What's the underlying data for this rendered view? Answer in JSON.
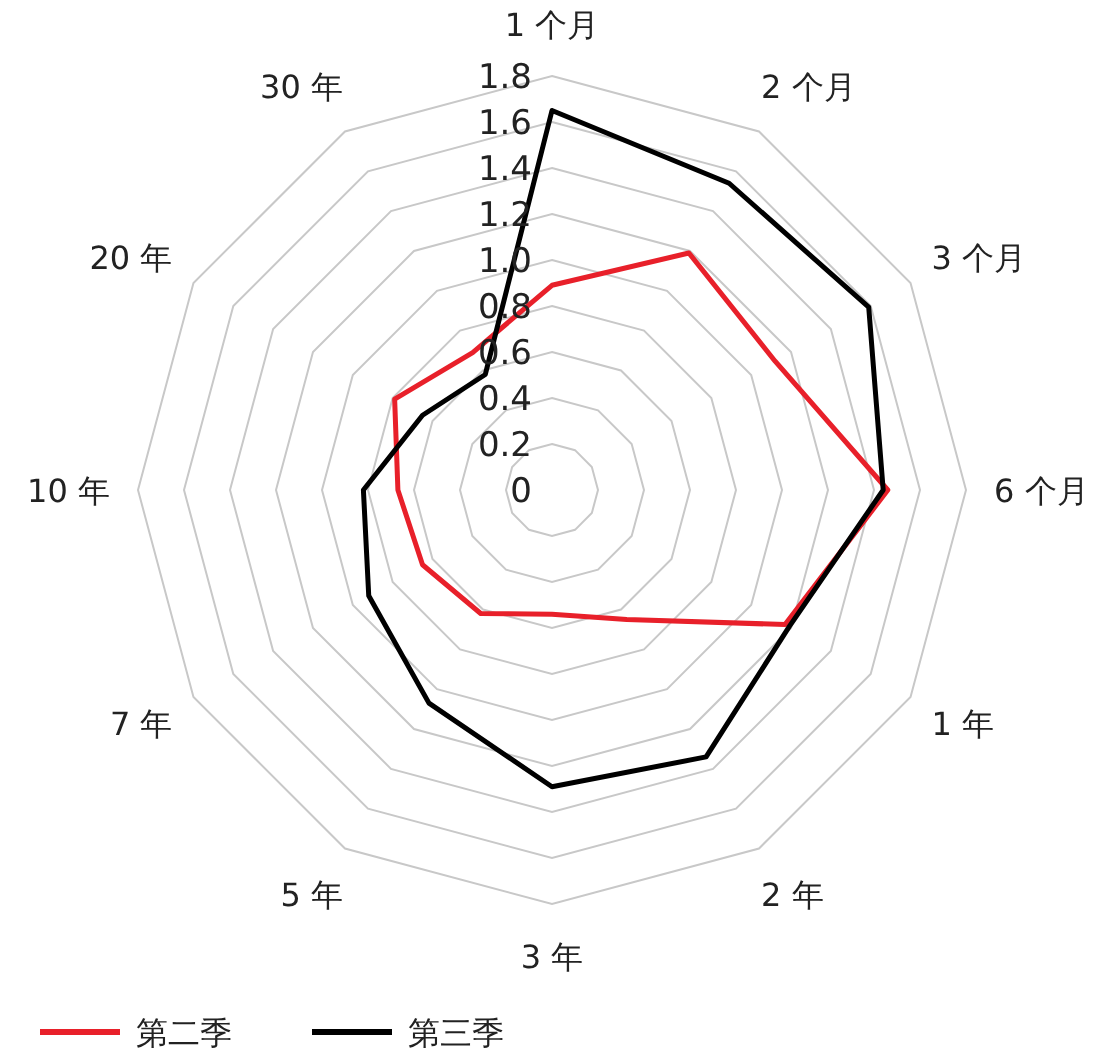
{
  "chart_data": {
    "type": "radar",
    "categories": [
      "1 个月",
      "2 个月",
      "3 个月",
      "6 个月",
      "1 年",
      "2 年",
      "3 年",
      "5 年",
      "7 年",
      "10 年",
      "20 年",
      "30 年"
    ],
    "series": [
      {
        "name": "第二季",
        "color": "#e8202a",
        "values": [
          0.89,
          1.19,
          1.12,
          1.46,
          1.17,
          0.65,
          0.54,
          0.62,
          0.65,
          0.67,
          0.79,
          0.69
        ]
      },
      {
        "name": "第三季",
        "color": "#000000",
        "values": [
          1.65,
          1.54,
          1.59,
          1.44,
          1.19,
          1.34,
          1.29,
          1.07,
          0.92,
          0.82,
          0.65,
          0.58
        ]
      }
    ],
    "ylim": [
      0,
      1.8
    ],
    "yticks": [
      0,
      0.2,
      0.4,
      0.6,
      0.8,
      {
        "value": 1,
        "label": "1.0"
      },
      1.2,
      1.4,
      1.6,
      1.8
    ],
    "grid": true,
    "legend": "bottom",
    "marker": "none",
    "line_style": "solid"
  }
}
